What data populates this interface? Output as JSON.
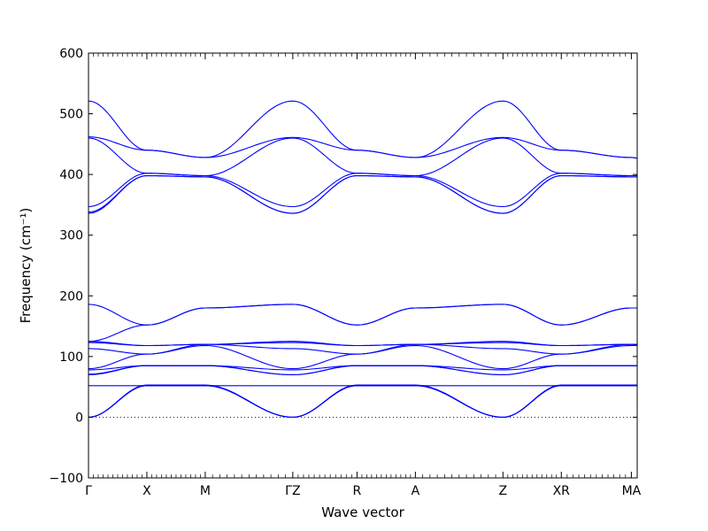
{
  "chart_data": {
    "type": "line",
    "title": "",
    "xlabel": "Wave vector",
    "ylabel": "Frequency (cm⁻¹)",
    "ylim": [
      -100,
      600
    ],
    "yticks": [
      -100,
      0,
      100,
      200,
      300,
      400,
      500,
      600
    ],
    "ytick_labels": [
      "−100",
      "0",
      "100",
      "200",
      "300",
      "400",
      "500",
      "600"
    ],
    "xlim": [
      0,
      9.4
    ],
    "high_symmetry_points": [
      {
        "label": "Γ",
        "x": 0
      },
      {
        "label": "X",
        "x": 1.0
      },
      {
        "label": "M",
        "x": 2.0
      },
      {
        "label": "ΓZ",
        "x": 3.5
      },
      {
        "label": "R",
        "x": 4.6
      },
      {
        "label": "A",
        "x": 5.6
      },
      {
        "label": "Z",
        "x": 7.1
      },
      {
        "label": "XR",
        "x": 8.1
      },
      {
        "label": "MA",
        "x": 9.3
      }
    ],
    "zero_line": true,
    "line_color": "#0000ff",
    "series": [
      {
        "x": [
          0,
          1.0,
          2.0,
          3.5,
          4.6,
          5.6,
          7.1,
          8.1,
          9.3,
          9.4
        ],
        "values": [
          521,
          440,
          428,
          521,
          440,
          428,
          521,
          440,
          428,
          427
        ]
      },
      {
        "x": [
          0,
          1.0,
          2.0,
          3.5,
          4.6,
          5.6,
          7.1,
          8.1,
          9.3,
          9.4
        ],
        "values": [
          462,
          440,
          428,
          461,
          440,
          428,
          461,
          440,
          428,
          427
        ]
      },
      {
        "x": [
          0,
          1.0,
          2.0,
          3.5,
          4.6,
          5.6,
          7.1,
          8.1,
          9.3,
          9.4
        ],
        "values": [
          460,
          402,
          398,
          460,
          402,
          398,
          460,
          402,
          398,
          398
        ]
      },
      {
        "x": [
          0,
          1.0,
          2.0,
          3.5,
          4.6,
          5.6,
          7.1,
          8.1,
          9.3,
          9.4
        ],
        "values": [
          347,
          402,
          398,
          347,
          402,
          398,
          347,
          402,
          398,
          398
        ]
      },
      {
        "x": [
          0,
          1.0,
          2.0,
          3.5,
          4.6,
          5.6,
          7.1,
          8.1,
          9.3,
          9.4
        ],
        "values": [
          338,
          398,
          396,
          336,
          398,
          396,
          336,
          398,
          396,
          396
        ]
      },
      {
        "x": [
          0,
          1.0,
          2.0,
          3.5,
          4.6,
          5.6,
          7.1,
          8.1,
          9.3,
          9.4
        ],
        "values": [
          336,
          398,
          396,
          336,
          398,
          396,
          336,
          398,
          396,
          396
        ]
      },
      {
        "x": [
          0,
          1.0,
          2.0,
          3.5,
          4.6,
          5.6,
          7.1,
          8.1,
          9.3,
          9.4
        ],
        "values": [
          186,
          152,
          180,
          186,
          152,
          180,
          186,
          152,
          180,
          180
        ]
      },
      {
        "x": [
          0,
          1.0,
          2.0,
          3.5,
          4.6,
          5.6,
          7.1,
          8.1,
          9.3,
          9.4
        ],
        "values": [
          125,
          152,
          180,
          186,
          152,
          180,
          186,
          152,
          180,
          180
        ]
      },
      {
        "x": [
          0,
          1.0,
          2.0,
          3.5,
          4.6,
          5.6,
          7.1,
          8.1,
          9.3,
          9.4
        ],
        "values": [
          125,
          118,
          120,
          125,
          118,
          120,
          125,
          118,
          120,
          120
        ]
      },
      {
        "x": [
          0,
          1.0,
          2.0,
          3.5,
          4.6,
          5.6,
          7.1,
          8.1,
          9.3,
          9.4
        ],
        "values": [
          123,
          118,
          120,
          123,
          118,
          120,
          123,
          118,
          120,
          120
        ]
      },
      {
        "x": [
          0,
          1.0,
          2.0,
          3.5,
          4.6,
          5.6,
          7.1,
          8.1,
          9.3,
          9.4
        ],
        "values": [
          113,
          104,
          120,
          113,
          104,
          120,
          113,
          104,
          120,
          119
        ]
      },
      {
        "x": [
          0,
          1.0,
          2.0,
          3.5,
          4.6,
          5.6,
          7.1,
          8.1,
          9.3,
          9.4
        ],
        "values": [
          80,
          104,
          118,
          80,
          104,
          118,
          80,
          104,
          118,
          118
        ]
      },
      {
        "x": [
          0,
          1.0,
          2.0,
          3.5,
          4.6,
          5.6,
          7.1,
          8.1,
          9.3,
          9.4
        ],
        "values": [
          78,
          85,
          85,
          78,
          85,
          85,
          78,
          85,
          85,
          85
        ]
      },
      {
        "x": [
          0,
          1.0,
          2.0,
          3.5,
          4.6,
          5.6,
          7.1,
          8.1,
          9.3,
          9.4
        ],
        "values": [
          71,
          85,
          85,
          70,
          85,
          85,
          70,
          85,
          85,
          85
        ]
      },
      {
        "x": [
          0,
          1.0,
          2.0,
          3.5,
          4.6,
          5.6,
          7.1,
          8.1,
          9.3,
          9.4
        ],
        "values": [
          70,
          85,
          85,
          70,
          85,
          85,
          70,
          85,
          85,
          85
        ]
      },
      {
        "x": [
          0,
          1.0,
          2.0,
          3.5,
          4.6,
          5.6,
          7.1,
          8.1,
          9.3,
          9.4
        ],
        "values": [
          0,
          52,
          52,
          0,
          52,
          52,
          0,
          52,
          52,
          52
        ]
      },
      {
        "x": [
          0,
          1.0,
          2.0,
          3.5,
          4.6,
          5.6,
          7.1,
          8.1,
          9.3,
          9.4
        ],
        "values": [
          0,
          52,
          52,
          0,
          52,
          52,
          0,
          52,
          52,
          52
        ]
      },
      {
        "x": [
          0,
          1.0,
          2.0,
          3.5,
          4.6,
          5.6,
          7.1,
          8.1,
          9.3,
          9.4
        ],
        "values": [
          0,
          53,
          53,
          0,
          53,
          53,
          0,
          53,
          53,
          53
        ]
      },
      {
        "x": [
          0,
          1.0,
          2.0,
          3.5,
          4.6,
          5.6,
          7.1,
          8.1,
          9.3,
          9.4
        ],
        "values": [
          52,
          52,
          52,
          52,
          52,
          52,
          52,
          52,
          52,
          52
        ]
      }
    ]
  }
}
